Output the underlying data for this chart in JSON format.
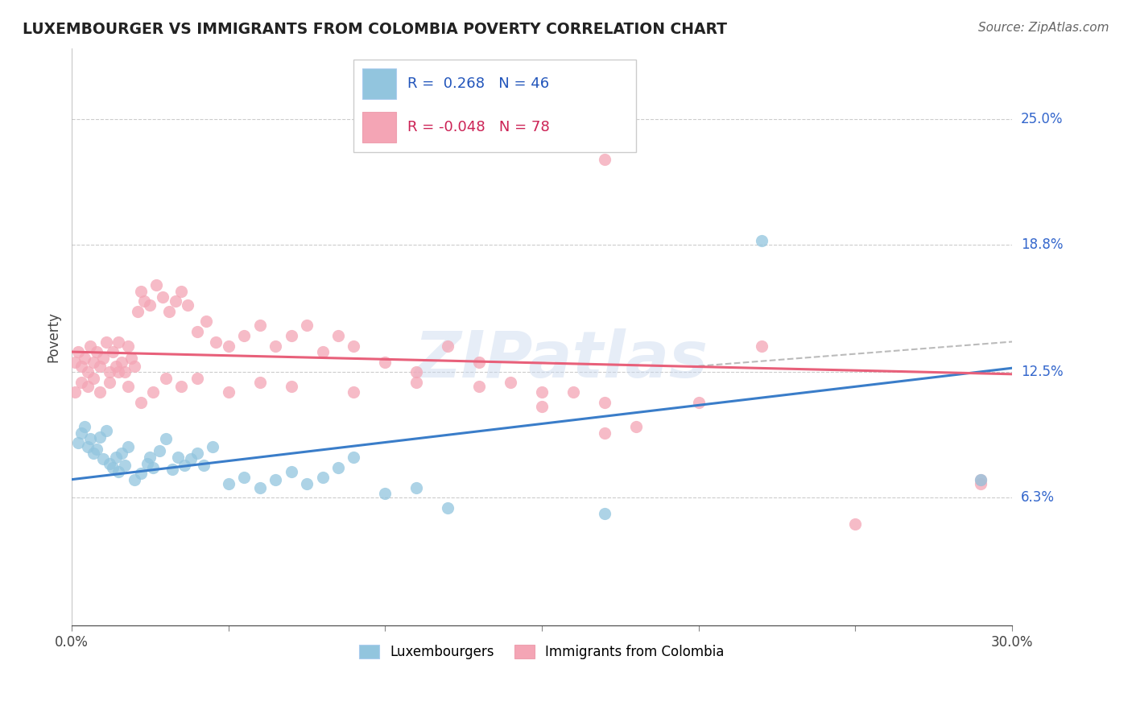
{
  "title": "LUXEMBOURGER VS IMMIGRANTS FROM COLOMBIA POVERTY CORRELATION CHART",
  "source": "Source: ZipAtlas.com",
  "ylabel": "Poverty",
  "xmin": 0.0,
  "xmax": 0.3,
  "ymin": 0.0,
  "ymax": 0.285,
  "yticks": [
    0.063,
    0.125,
    0.188,
    0.25
  ],
  "ytick_labels": [
    "6.3%",
    "12.5%",
    "18.8%",
    "25.0%"
  ],
  "xtick_labels": [
    "0.0%",
    "30.0%"
  ],
  "blue_R": "0.268",
  "blue_N": "46",
  "pink_R": "-0.048",
  "pink_N": "78",
  "blue_color": "#92c5de",
  "pink_color": "#f4a5b5",
  "blue_line_color": "#3a7dc9",
  "pink_line_color": "#e8607a",
  "legend_blue_label": "Luxembourgers",
  "legend_pink_label": "Immigrants from Colombia",
  "watermark": "ZIPatlas",
  "blue_x": [
    0.002,
    0.003,
    0.004,
    0.005,
    0.006,
    0.007,
    0.008,
    0.009,
    0.01,
    0.011,
    0.012,
    0.013,
    0.014,
    0.015,
    0.016,
    0.017,
    0.018,
    0.02,
    0.022,
    0.024,
    0.025,
    0.026,
    0.028,
    0.03,
    0.032,
    0.034,
    0.036,
    0.038,
    0.04,
    0.042,
    0.045,
    0.05,
    0.055,
    0.06,
    0.065,
    0.07,
    0.075,
    0.08,
    0.085,
    0.09,
    0.1,
    0.11,
    0.12,
    0.17,
    0.22,
    0.29
  ],
  "blue_y": [
    0.09,
    0.095,
    0.098,
    0.088,
    0.092,
    0.085,
    0.087,
    0.093,
    0.082,
    0.096,
    0.08,
    0.078,
    0.083,
    0.076,
    0.085,
    0.079,
    0.088,
    0.072,
    0.075,
    0.08,
    0.083,
    0.078,
    0.086,
    0.092,
    0.077,
    0.083,
    0.079,
    0.082,
    0.085,
    0.079,
    0.088,
    0.07,
    0.073,
    0.068,
    0.072,
    0.076,
    0.07,
    0.073,
    0.078,
    0.083,
    0.065,
    0.068,
    0.058,
    0.055,
    0.19,
    0.072
  ],
  "pink_x": [
    0.001,
    0.002,
    0.003,
    0.004,
    0.005,
    0.006,
    0.007,
    0.008,
    0.009,
    0.01,
    0.011,
    0.012,
    0.013,
    0.014,
    0.015,
    0.016,
    0.017,
    0.018,
    0.019,
    0.02,
    0.021,
    0.022,
    0.023,
    0.025,
    0.027,
    0.029,
    0.031,
    0.033,
    0.035,
    0.037,
    0.04,
    0.043,
    0.046,
    0.05,
    0.055,
    0.06,
    0.065,
    0.07,
    0.075,
    0.08,
    0.085,
    0.09,
    0.1,
    0.11,
    0.12,
    0.13,
    0.14,
    0.15,
    0.16,
    0.17,
    0.001,
    0.003,
    0.005,
    0.007,
    0.009,
    0.012,
    0.015,
    0.018,
    0.022,
    0.026,
    0.03,
    0.035,
    0.04,
    0.05,
    0.06,
    0.07,
    0.09,
    0.11,
    0.13,
    0.15,
    0.17,
    0.18,
    0.2,
    0.22,
    0.25,
    0.17,
    0.29,
    0.29
  ],
  "pink_y": [
    0.13,
    0.135,
    0.128,
    0.132,
    0.125,
    0.138,
    0.13,
    0.135,
    0.128,
    0.132,
    0.14,
    0.125,
    0.135,
    0.128,
    0.14,
    0.13,
    0.125,
    0.138,
    0.132,
    0.128,
    0.155,
    0.165,
    0.16,
    0.158,
    0.168,
    0.162,
    0.155,
    0.16,
    0.165,
    0.158,
    0.145,
    0.15,
    0.14,
    0.138,
    0.143,
    0.148,
    0.138,
    0.143,
    0.148,
    0.135,
    0.143,
    0.138,
    0.13,
    0.125,
    0.138,
    0.13,
    0.12,
    0.108,
    0.115,
    0.11,
    0.115,
    0.12,
    0.118,
    0.122,
    0.115,
    0.12,
    0.125,
    0.118,
    0.11,
    0.115,
    0.122,
    0.118,
    0.122,
    0.115,
    0.12,
    0.118,
    0.115,
    0.12,
    0.118,
    0.115,
    0.095,
    0.098,
    0.11,
    0.138,
    0.05,
    0.23,
    0.07,
    0.072
  ]
}
